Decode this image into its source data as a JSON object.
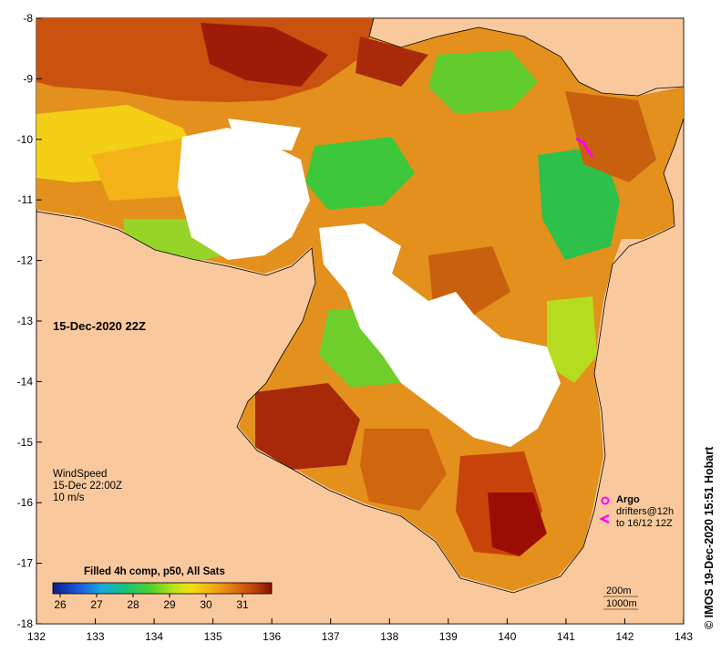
{
  "map": {
    "date_label": "15-Dec-2020 22Z",
    "wind": {
      "title": "WindSpeed",
      "time": "15-Dec 22:00Z",
      "scale": "10 m/s"
    },
    "legend": {
      "argo_label": "Argo",
      "drifters_label": "drifters@12h",
      "drifters_until": "to 16/12 12Z"
    },
    "depth_contours": [
      "200m",
      "1000m"
    ],
    "colorbar": {
      "title": "Filled 4h comp, p50, All Sats",
      "ticks": [
        "26",
        "27",
        "28",
        "29",
        "30",
        "31"
      ],
      "range": [
        25.8,
        31.8
      ]
    },
    "credit": "© IMOS 19-Dec-2020 15:51 Hobart",
    "axes": {
      "x_ticks": [
        "132",
        "133",
        "134",
        "135",
        "136",
        "137",
        "138",
        "139",
        "140",
        "141",
        "142",
        "143"
      ],
      "y_ticks": [
        "-8",
        "-9",
        "-10",
        "-11",
        "-12",
        "-13",
        "-14",
        "-15",
        "-16",
        "-17",
        "-18"
      ],
      "lon_range": [
        132,
        143
      ],
      "lat_range": [
        -18,
        -8
      ]
    },
    "colors": {
      "land": "#f9c99d",
      "no_data": "#ffffff",
      "argo_marker": "#ff00ff"
    }
  }
}
